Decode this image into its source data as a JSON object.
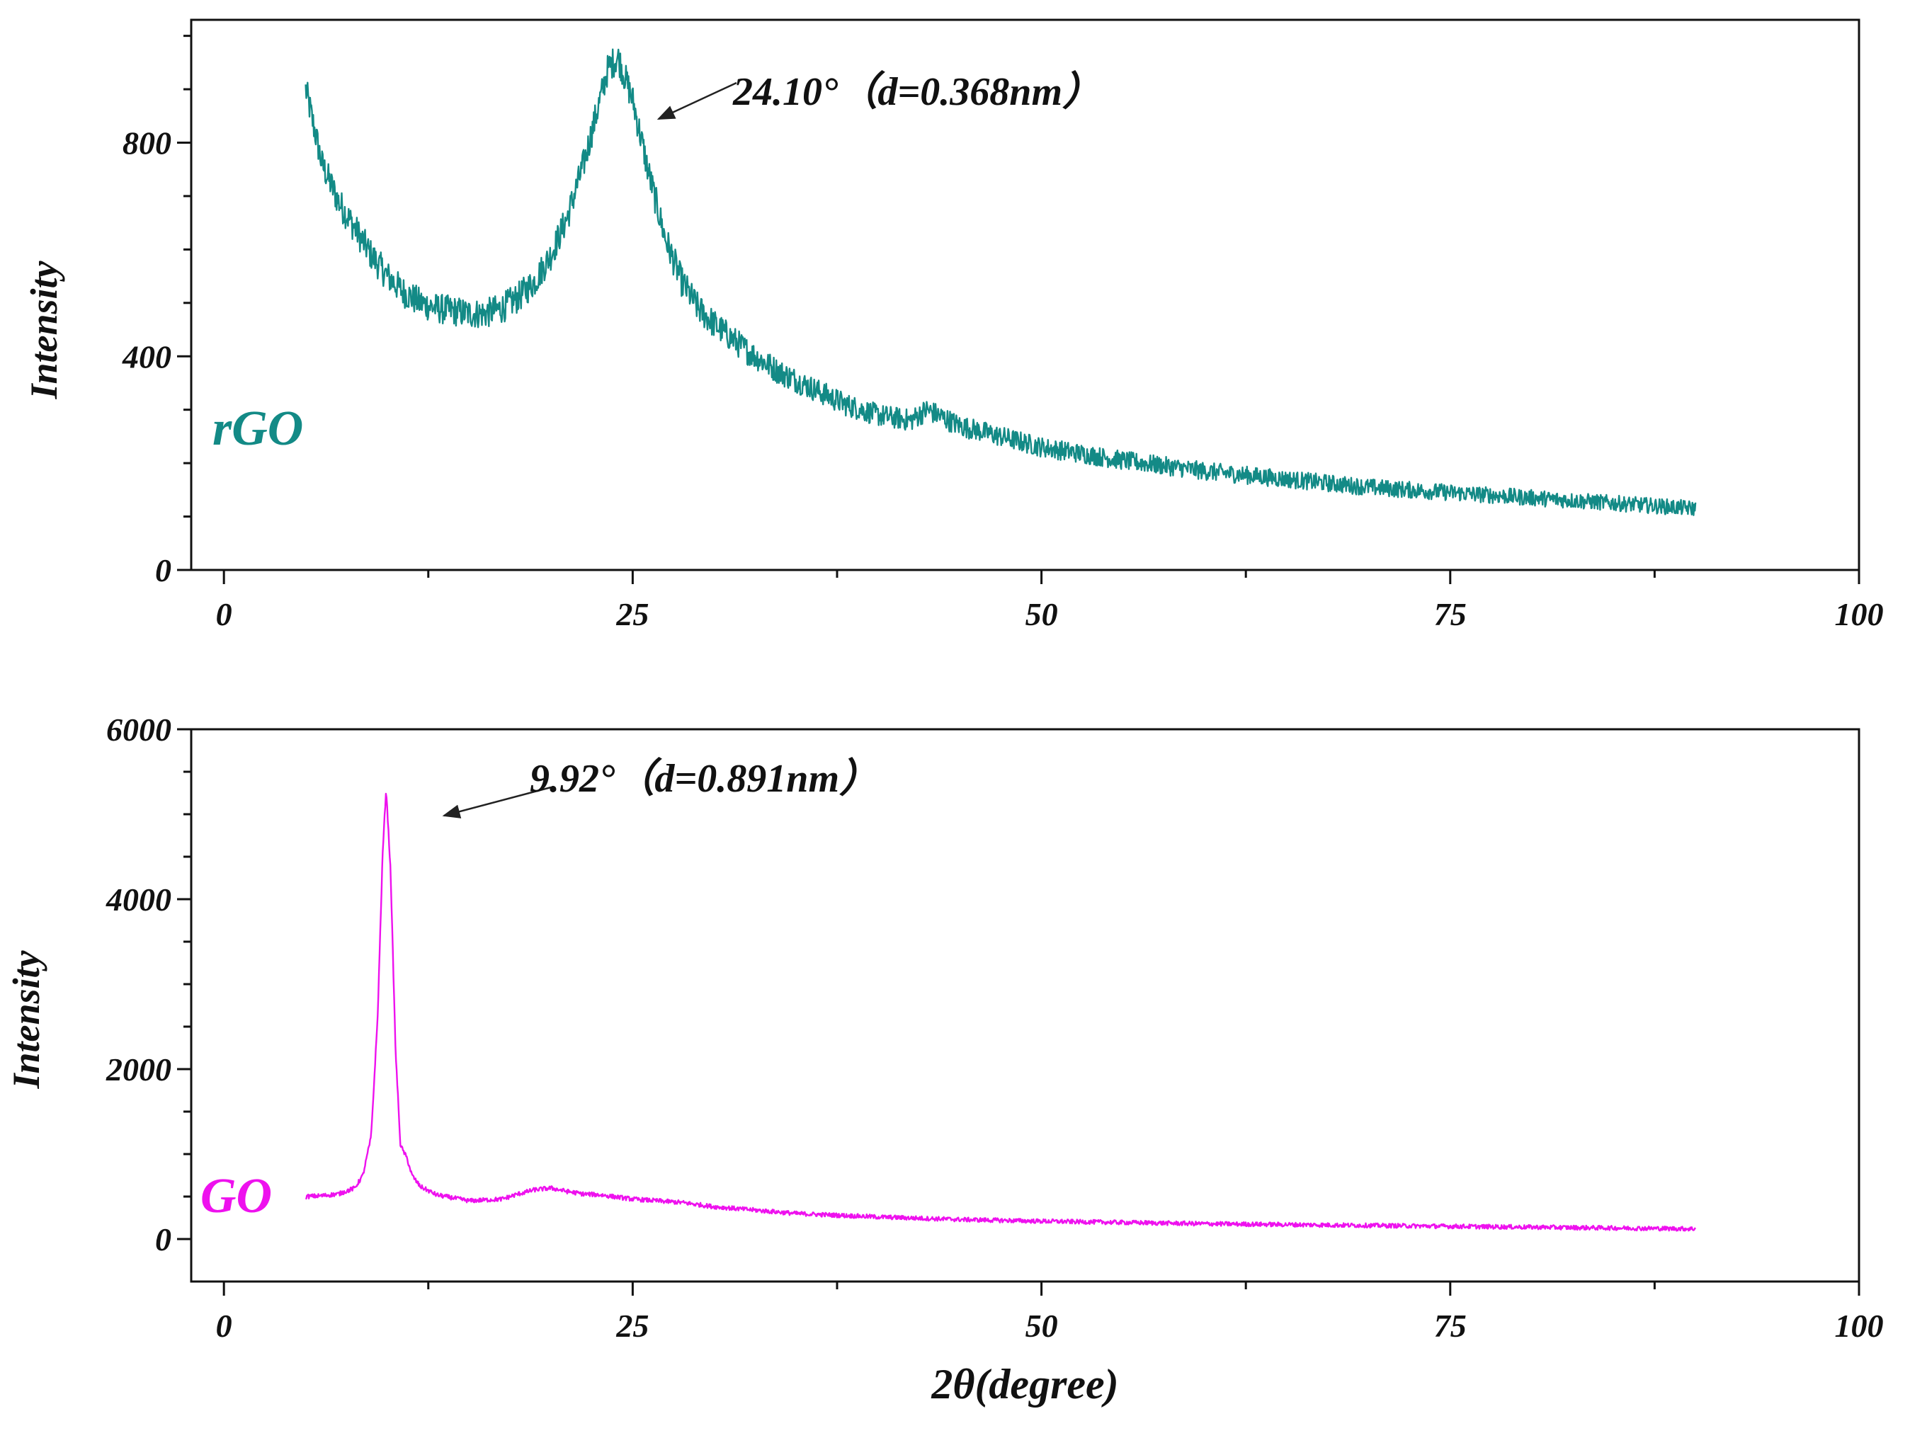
{
  "chart_data": [
    {
      "type": "line",
      "panel": "top",
      "series": [
        {
          "name": "rGO",
          "color": "#138a86",
          "x": [
            5,
            5.5,
            6,
            7,
            8,
            9,
            10,
            11,
            12,
            13,
            14,
            15,
            16,
            17,
            18,
            19,
            20,
            21,
            22,
            23,
            23.5,
            24.1,
            25,
            26,
            27,
            28,
            29,
            30,
            32,
            34,
            36,
            38,
            40,
            42,
            43,
            45,
            50,
            55,
            60,
            65,
            70,
            75,
            80,
            85,
            90
          ],
          "y": [
            900,
            830,
            760,
            690,
            640,
            590,
            550,
            520,
            500,
            490,
            485,
            480,
            480,
            490,
            510,
            540,
            590,
            660,
            760,
            880,
            940,
            960,
            880,
            740,
            620,
            540,
            490,
            460,
            410,
            370,
            340,
            310,
            290,
            280,
            300,
            270,
            230,
            205,
            185,
            170,
            155,
            145,
            135,
            125,
            115
          ]
        }
      ],
      "annotations": [
        {
          "text": "24.10°（d=0.368nm）",
          "x": 24.1,
          "y": 960
        }
      ],
      "label": "rGO",
      "xlim": [
        -2,
        100
      ],
      "ylim": [
        0,
        1030
      ],
      "xticks": [
        0,
        25,
        50,
        75,
        100
      ],
      "yticks": [
        0,
        400,
        800
      ],
      "xlabel": "",
      "ylabel": "Intensity"
    },
    {
      "type": "line",
      "panel": "bottom",
      "series": [
        {
          "name": "GO",
          "color": "#ee11ee",
          "x": [
            5,
            6,
            7,
            8,
            8.5,
            9,
            9.4,
            9.7,
            9.92,
            10.2,
            10.5,
            10.8,
            11.2,
            11.5,
            12,
            13,
            15,
            17,
            18,
            19,
            20,
            21,
            22,
            23,
            25,
            28,
            30,
            35,
            40,
            45,
            50,
            55,
            60,
            65,
            70,
            75,
            80,
            85,
            90
          ],
          "y": [
            500,
            510,
            530,
            600,
            750,
            1200,
            2600,
            4500,
            5300,
            4300,
            2200,
            1100,
            950,
            750,
            620,
            520,
            450,
            470,
            530,
            580,
            600,
            560,
            530,
            520,
            470,
            430,
            380,
            300,
            260,
            230,
            210,
            195,
            180,
            170,
            160,
            150,
            140,
            130,
            120
          ]
        }
      ],
      "annotations": [
        {
          "text": "9.92°（d=0.891nm）",
          "x": 9.92,
          "y": 5300
        }
      ],
      "label": "GO",
      "xlim": [
        -2,
        100
      ],
      "ylim": [
        -500,
        6000
      ],
      "xticks": [
        0,
        25,
        50,
        75,
        100
      ],
      "yticks": [
        0,
        2000,
        4000,
        6000
      ],
      "xlabel": "2θ(degree)",
      "ylabel": "Intensity"
    }
  ]
}
